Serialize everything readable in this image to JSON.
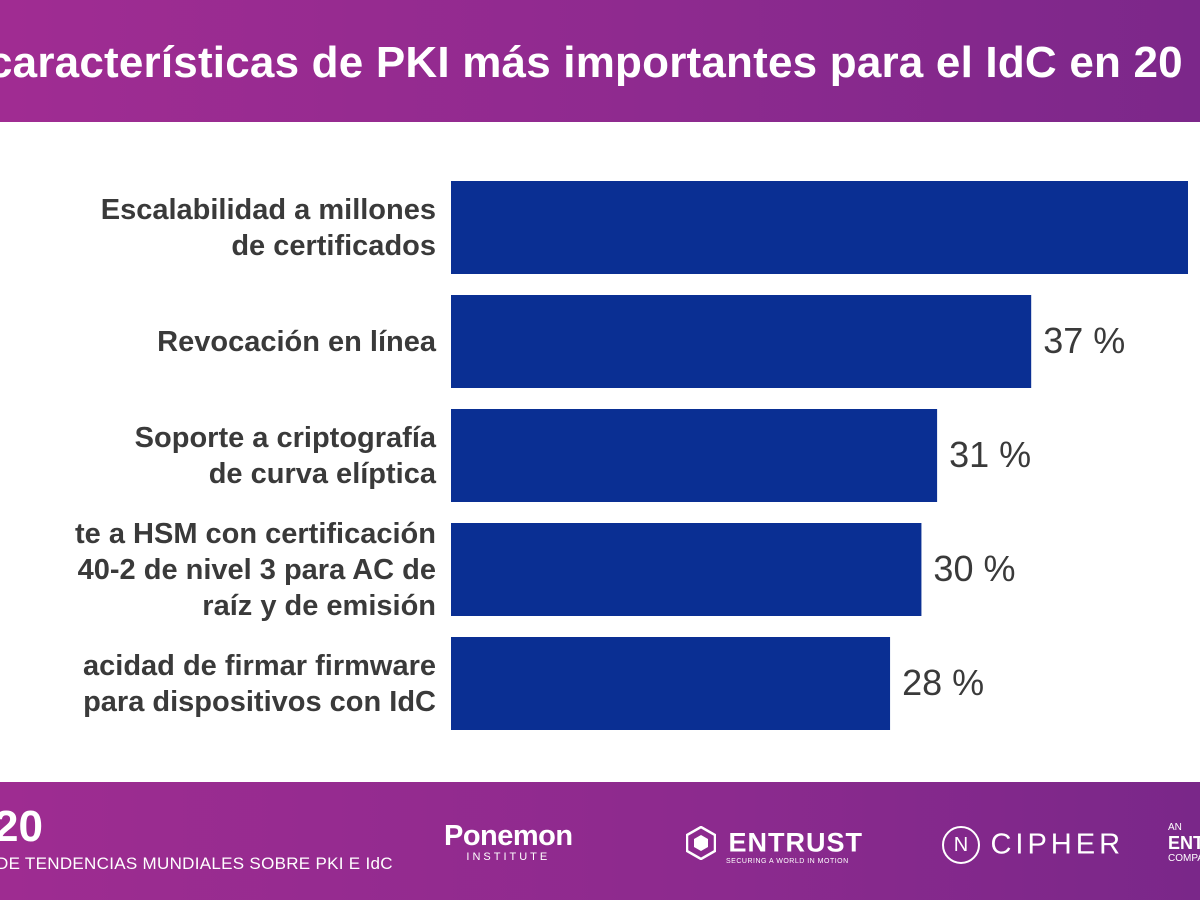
{
  "header": {
    "title": "características de PKI más importantes para el IdC en 20"
  },
  "chart_data": {
    "type": "bar",
    "orientation": "horizontal",
    "title": "características de PKI más importantes para el IdC en 20",
    "categories": [
      "Escalabilidad a millones\nde certificados",
      "Revocación en línea",
      "Soporte a criptografía\nde curva elíptica",
      "te a HSM con certificación\n40-2 de nivel 3 para AC de\nraíz y de emisión",
      "acidad de firmar firmware\npara dispositivos con IdC"
    ],
    "values": [
      47,
      37,
      31,
      30,
      28
    ],
    "value_labels": [
      "",
      "37 %",
      "31 %",
      "30 %",
      "28 %"
    ],
    "unit": "%",
    "bar_color": "#0a2f93",
    "xlim": [
      0,
      47
    ],
    "grid": false,
    "legend": false
  },
  "footer": {
    "year": "20",
    "report": "DE TENDENCIAS MUNDIALES SOBRE PKI E IdC",
    "logos": {
      "ponemon_main": "Ponemon",
      "ponemon_sub": "INSTITUTE",
      "entrust_main": "ENTRUST",
      "entrust_tag": "SECURING A WORLD IN MOTION",
      "ncipher_mark": "N",
      "ncipher_main": "CIPHER",
      "an_small": "AN",
      "an_big": "ENT",
      "an_company": "COMPA"
    }
  },
  "colors": {
    "header_bg": "#962b90",
    "footer_bg": "#922b8f",
    "bar": "#0a2f93",
    "text": "#3a3a3a"
  }
}
